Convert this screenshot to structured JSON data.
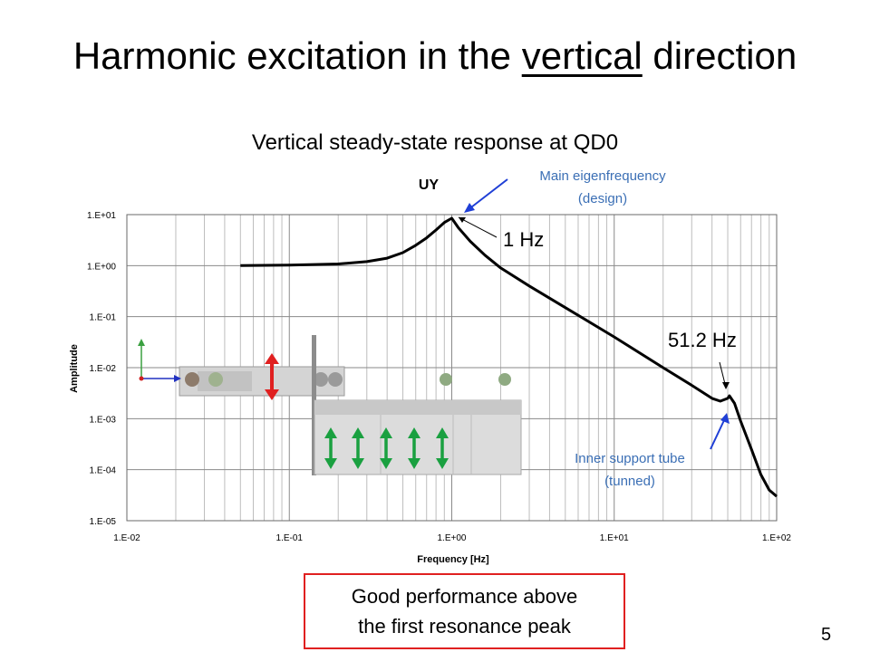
{
  "slide": {
    "title_pre": "Harmonic excitation in the ",
    "title_underlined": "vertical",
    "title_post": " direction",
    "subtitle": "Vertical steady-state response at QD0",
    "page_number": "5"
  },
  "annotations": {
    "main_freq_line1": "Main eigenfrequency",
    "main_freq_line2": "(design)",
    "peak1_label": "1 Hz",
    "peak2_label": "51.2 Hz",
    "support_line1": "Inner support tube",
    "support_line2": "(tunned)",
    "callout_line1": "Good performance above",
    "callout_line2": "the first resonance peak",
    "note_color": "#3b6fb5",
    "arrow_color": "#1f3fd6",
    "callout_border": "#e02020"
  },
  "chart_data": {
    "type": "line",
    "title": "UY",
    "xlabel": "Frequency [Hz]",
    "ylabel": "Amplitude",
    "xscale": "log",
    "yscale": "log",
    "xlim": [
      0.01,
      100
    ],
    "ylim": [
      1e-05,
      10
    ],
    "grid": true,
    "x_ticks": [
      "1.E-02",
      "1.E-01",
      "1.E+00",
      "1.E+01",
      "1.E+02"
    ],
    "y_ticks": [
      "1.E+01",
      "1.E+00",
      "1.E-01",
      "1.E-02",
      "1.E-03",
      "1.E-04",
      "1.E-05"
    ],
    "series": [
      {
        "color": "#000000",
        "x": [
          0.05,
          0.1,
          0.2,
          0.3,
          0.4,
          0.5,
          0.6,
          0.7,
          0.8,
          0.9,
          1.0,
          1.1,
          1.3,
          1.6,
          2,
          3,
          5,
          10,
          20,
          30,
          40,
          45,
          50,
          51.2,
          55,
          60,
          70,
          80,
          90,
          100
        ],
        "y": [
          1.0,
          1.02,
          1.08,
          1.2,
          1.4,
          1.8,
          2.5,
          3.5,
          5.0,
          7.0,
          8.5,
          5.5,
          3.0,
          1.6,
          0.9,
          0.4,
          0.15,
          0.04,
          0.01,
          0.0045,
          0.0025,
          0.0022,
          0.0025,
          0.0028,
          0.002,
          0.0009,
          0.00025,
          8e-05,
          4e-05,
          3e-05
        ]
      }
    ]
  }
}
